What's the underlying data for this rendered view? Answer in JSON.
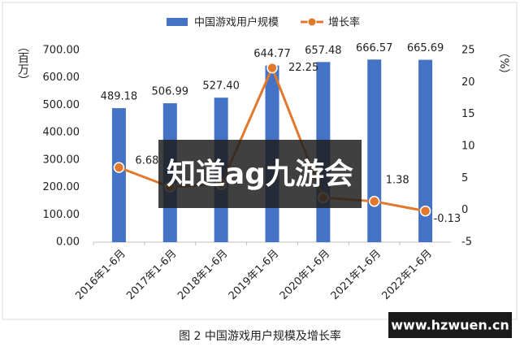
{
  "chart_data": {
    "type": "bar-line",
    "caption": "图 2 中国游戏用户规模及增长率",
    "y_label": "（百万）",
    "y2_label": "（%）",
    "categories": [
      "2016年1-6月",
      "2017年1-6月",
      "2018年1-6月",
      "2019年1-6月",
      "2020年1-6月",
      "2021年1-6月",
      "2022年1-6月"
    ],
    "series": [
      {
        "name": "中国游戏用户规模",
        "type": "bar",
        "color": "#4472c4",
        "values": [
          489.18,
          506.99,
          527.4,
          644.77,
          657.48,
          666.57,
          665.69
        ],
        "value_labels": [
          "489.18",
          "506.99",
          "527.40",
          "644.77",
          "657.48",
          "666.57",
          "665.69"
        ]
      },
      {
        "name": "增长率",
        "type": "line",
        "axis": "y2",
        "color": "#e2782b",
        "values": [
          6.68,
          3.64,
          4.03,
          22.25,
          1.97,
          1.38,
          -0.13
        ],
        "value_labels": [
          "6.68",
          null,
          null,
          "22.25",
          null,
          "1.38",
          "-0.13"
        ]
      }
    ],
    "ylim": [
      0,
      700
    ],
    "yticks": [
      {
        "value": 0,
        "label": "0.00"
      },
      {
        "value": 100,
        "label": "100.00"
      },
      {
        "value": 200,
        "label": "200.00"
      },
      {
        "value": 300,
        "label": "300.00"
      },
      {
        "value": 400,
        "label": "400.00"
      },
      {
        "value": 500,
        "label": "500.00"
      },
      {
        "value": 600,
        "label": "600.00"
      },
      {
        "value": 700,
        "label": "700.00"
      }
    ],
    "y2lim": [
      -5,
      25
    ],
    "y2ticks": [
      -5,
      0,
      5,
      10,
      15,
      20,
      25
    ],
    "legend": "top",
    "watermark": "知道ag九游会",
    "site_label": "www.hzwuen.cn"
  }
}
